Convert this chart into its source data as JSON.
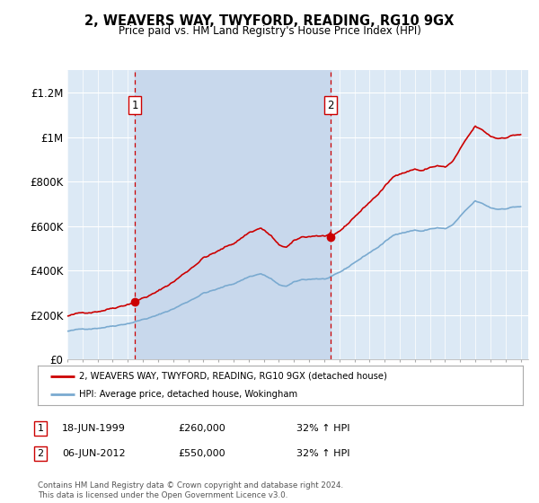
{
  "title": "2, WEAVERS WAY, TWYFORD, READING, RG10 9GX",
  "subtitle": "Price paid vs. HM Land Registry's House Price Index (HPI)",
  "ylabel_ticks": [
    "£0",
    "£200K",
    "£400K",
    "£600K",
    "£800K",
    "£1M",
    "£1.2M"
  ],
  "ytick_values": [
    0,
    200000,
    400000,
    600000,
    800000,
    1000000,
    1200000
  ],
  "ylim": [
    0,
    1300000
  ],
  "xlim_start": 1995.0,
  "xlim_end": 2025.5,
  "background_color": "#dce9f5",
  "outer_bg_color": "#e8eef5",
  "grid_color": "#ffffff",
  "sale1_year": 1999.46,
  "sale1_price": 260000,
  "sale2_year": 2012.43,
  "sale2_price": 550000,
  "sale_color": "#cc0000",
  "hpi_line_color": "#7aaad0",
  "vline_color": "#cc0000",
  "shade_color": "#c8d8ec",
  "legend_label_sale": "2, WEAVERS WAY, TWYFORD, READING, RG10 9GX (detached house)",
  "legend_label_hpi": "HPI: Average price, detached house, Wokingham",
  "footer": "Contains HM Land Registry data © Crown copyright and database right 2024.\nThis data is licensed under the Open Government Licence v3.0.",
  "table_rows": [
    {
      "num": "1",
      "date": "18-JUN-1999",
      "price": "£260,000",
      "hpi": "32% ↑ HPI"
    },
    {
      "num": "2",
      "date": "06-JUN-2012",
      "price": "£550,000",
      "hpi": "32% ↑ HPI"
    }
  ]
}
